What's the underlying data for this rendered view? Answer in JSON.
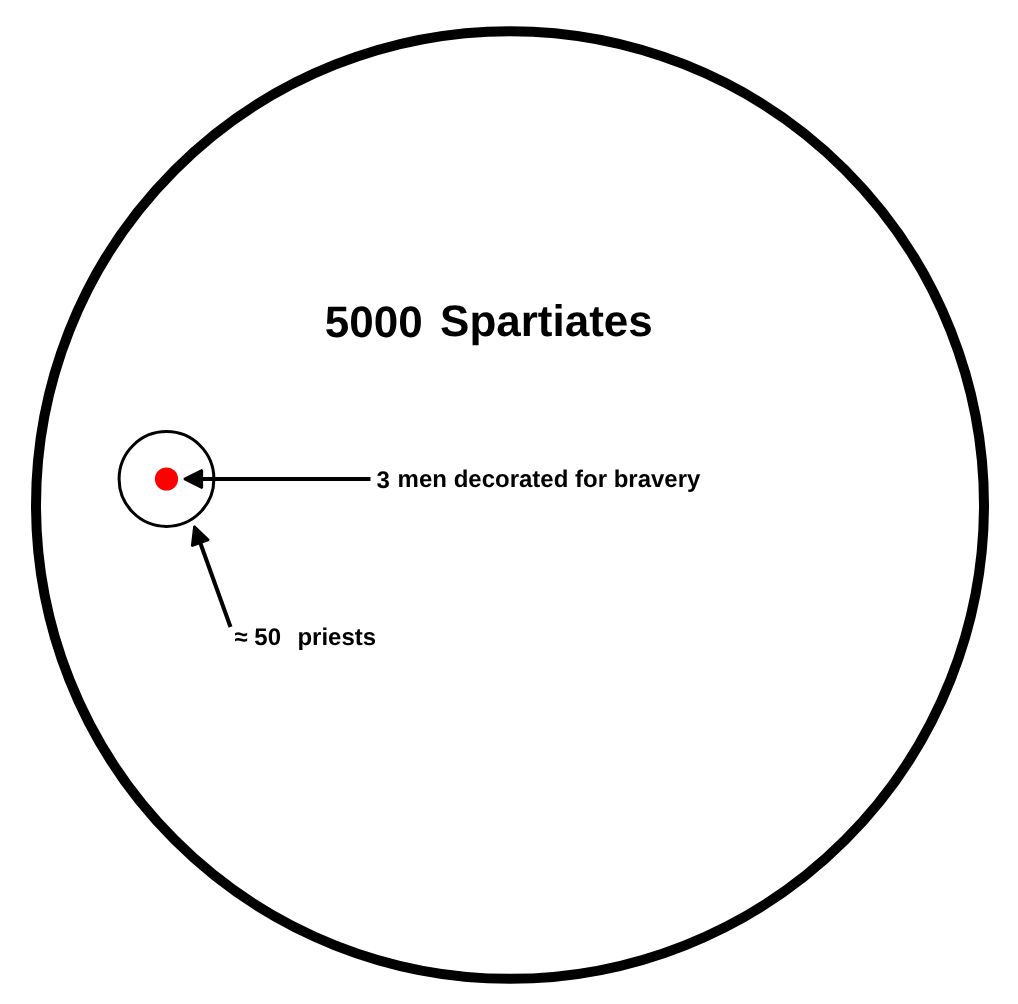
{
  "chart_data": {
    "type": "other",
    "categories": [
      "Spartiates",
      "priests",
      "men decorated for bravery"
    ],
    "values": [
      5000,
      50,
      3
    ],
    "value_labels": [
      "5000",
      "≈ 50",
      "3"
    ],
    "colors": [
      "#ffffff",
      "#ffffff",
      "#ff0000"
    ]
  }
}
